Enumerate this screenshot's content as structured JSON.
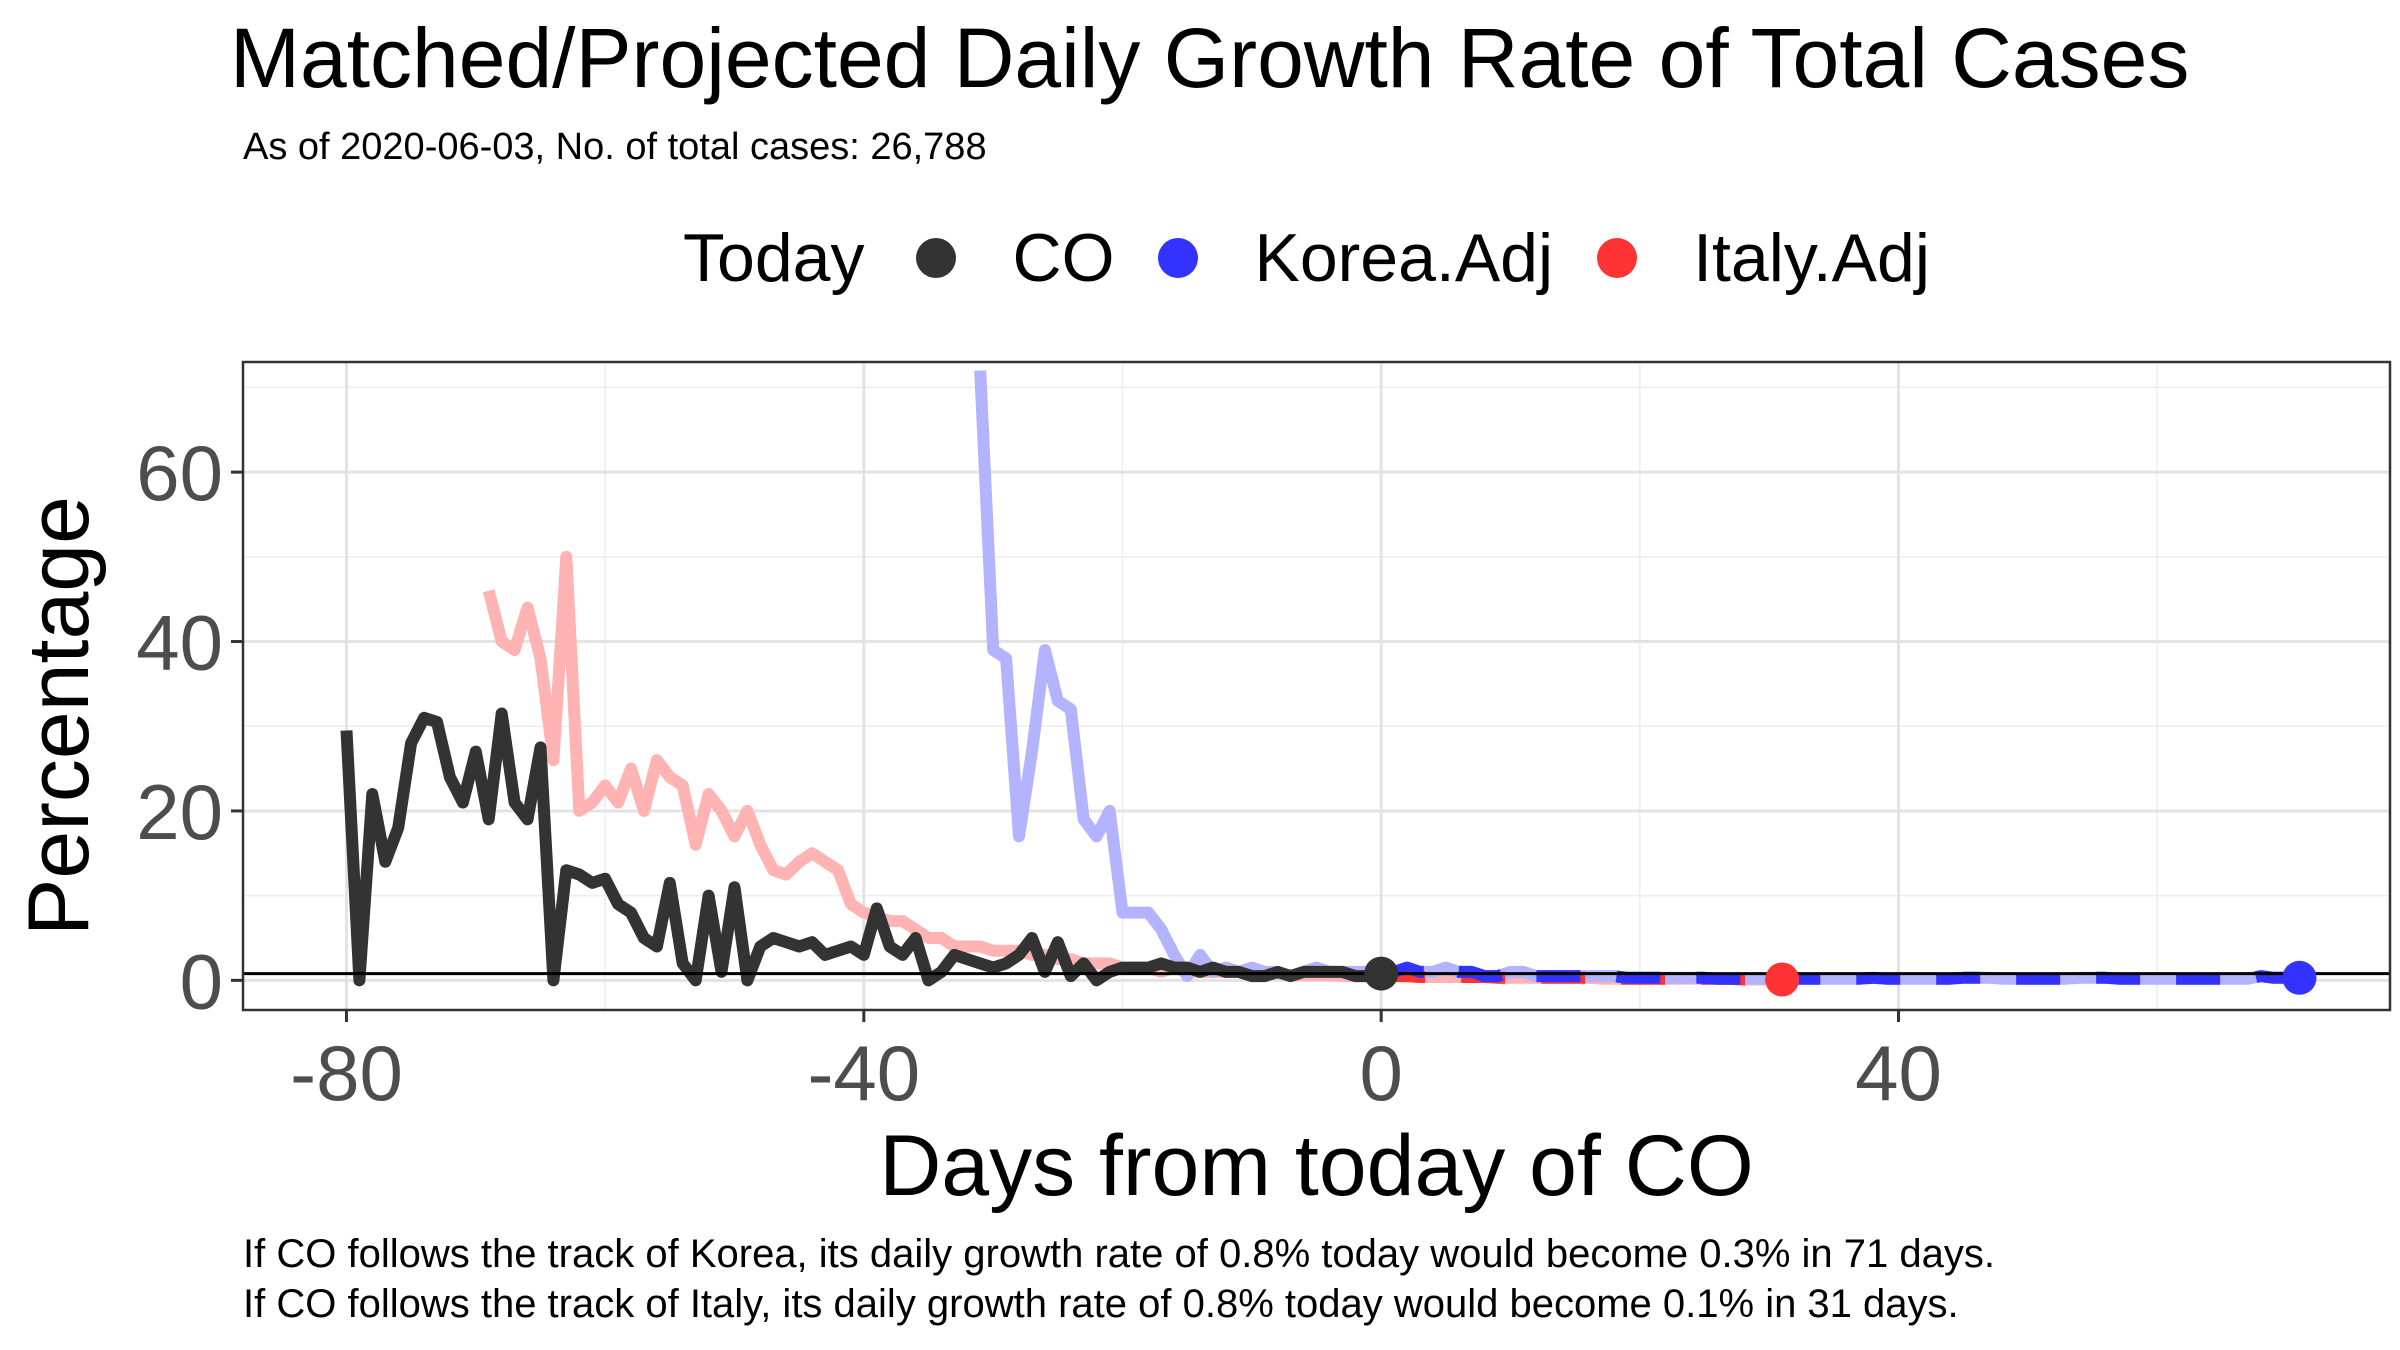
{
  "header": {
    "title": "Matched/Projected Daily Growth Rate of Total Cases",
    "subtitle": "As of 2020-06-03, No. of total cases: 26,788"
  },
  "legend": {
    "title": "Today",
    "items": [
      {
        "label": "CO",
        "color": "#333333"
      },
      {
        "label": "Korea.Adj",
        "color": "#3333ff"
      },
      {
        "label": "Italy.Adj",
        "color": "#ff3333"
      }
    ]
  },
  "captions": [
    "If CO follows the track of Korea, its daily growth rate of 0.8% today would become 0.3% in 71 days.",
    "If CO follows the track of Italy, its daily growth rate of 0.8% today would become 0.1% in 31 days."
  ],
  "chart_data": {
    "type": "line",
    "title": "Matched/Projected Daily Growth Rate of Total Cases",
    "subtitle": "As of 2020-06-03, No. of total cases: 26,788",
    "xlabel": "Days from today of CO",
    "ylabel": "Percentage",
    "xlim": [
      -88,
      78
    ],
    "ylim": [
      -3.5,
      73
    ],
    "xticks": [
      -80,
      -40,
      0,
      40
    ],
    "xtick_labels": [
      "-80",
      "-40",
      "0",
      "40"
    ],
    "yticks": [
      0,
      20,
      40,
      60
    ],
    "ytick_labels": [
      "0",
      "20",
      "40",
      "60"
    ],
    "grid": true,
    "legend_position": "top",
    "reference_line": 0.8,
    "series": [
      {
        "name": "CO",
        "color": "#333333",
        "faded_color": "#333333",
        "x": [
          -80,
          -79,
          -78,
          -77,
          -76,
          -75,
          -74,
          -73,
          -72,
          -71,
          -70,
          -69,
          -68,
          -67,
          -66,
          -65,
          -64,
          -63,
          -62,
          -61,
          -60,
          -59,
          -58,
          -57,
          -56,
          -55,
          -54,
          -53,
          -52,
          -51,
          -50,
          -49,
          -48,
          -47,
          -46,
          -45,
          -44,
          -43,
          -42,
          -41,
          -40,
          -39,
          -38,
          -37,
          -36,
          -35,
          -34,
          -33,
          -32,
          -31,
          -30,
          -29,
          -28,
          -27,
          -26,
          -25,
          -24,
          -23,
          -22,
          -21,
          -20,
          -19,
          -18,
          -17,
          -16,
          -15,
          -14,
          -13,
          -12,
          -11,
          -10,
          -9,
          -8,
          -7,
          -6,
          -5,
          -4,
          -3,
          -2,
          -1,
          0
        ],
        "y": [
          29.5,
          0,
          22,
          14,
          18,
          28,
          31,
          30.5,
          24,
          21,
          27,
          19,
          31.5,
          21,
          19,
          27.5,
          0,
          13,
          12.5,
          11.5,
          12,
          9,
          8,
          5,
          4,
          11.5,
          2,
          0,
          10,
          1,
          11,
          0,
          4,
          5,
          4.5,
          4,
          4.5,
          3,
          3.5,
          4,
          3,
          8.5,
          4,
          3,
          5,
          0,
          1,
          3,
          2.5,
          2,
          1.5,
          2,
          3,
          5,
          1,
          4.5,
          0.5,
          2,
          0,
          1,
          1.5,
          1.5,
          1.5,
          2,
          1.5,
          1.5,
          1,
          1.5,
          1,
          1,
          0.5,
          0.5,
          1,
          0.5,
          1,
          1,
          1,
          1,
          0.5,
          0.5,
          0.8
        ],
        "today": {
          "x": 0,
          "y": 0.8
        }
      },
      {
        "name": "Korea.Adj",
        "color": "#3333ff",
        "faded_color": "#b3b3ff",
        "x": [
          -31,
          -30,
          -29,
          -28,
          -27,
          -26,
          -25,
          -24,
          -23,
          -22,
          -21,
          -20,
          -19,
          -18,
          -17,
          -16,
          -15,
          -14,
          -13,
          -12,
          -11,
          -10,
          -9,
          -8,
          -7,
          -6,
          -5,
          -4,
          -3,
          -2,
          -1,
          0,
          1,
          2,
          3,
          4,
          5,
          6,
          7,
          8,
          9,
          10,
          11,
          12,
          13,
          14,
          15,
          16,
          17,
          18,
          19,
          20,
          21,
          22,
          23,
          24,
          25,
          26,
          27,
          28,
          29,
          30,
          31,
          32,
          33,
          34,
          35,
          36,
          37,
          38,
          39,
          40,
          41,
          42,
          43,
          44,
          45,
          46,
          47,
          48,
          49,
          50,
          51,
          52,
          53,
          54,
          55,
          56,
          57,
          58,
          59,
          60,
          61,
          62,
          63,
          64,
          65,
          66,
          67,
          68,
          69,
          70,
          71
        ],
        "y": [
          72,
          39,
          38,
          17,
          27,
          39,
          33,
          32,
          19,
          17,
          20,
          8,
          8,
          8,
          6,
          3,
          0.5,
          3,
          1,
          1.5,
          1,
          1.5,
          1,
          1,
          0.5,
          1,
          1.5,
          1,
          1,
          1,
          1,
          1,
          1,
          1.5,
          1,
          1,
          1.5,
          1,
          1,
          0.5,
          0.5,
          1,
          1,
          0.5,
          0.5,
          0.5,
          0.5,
          0.5,
          0.5,
          0.5,
          0.3,
          0.3,
          0.3,
          0.3,
          0.3,
          0.3,
          0.3,
          0.2,
          0.2,
          0.2,
          0.2,
          0.2,
          0.2,
          0.2,
          0.2,
          0.2,
          0.2,
          0.2,
          0.2,
          0.3,
          0.2,
          0.2,
          0.2,
          0.2,
          0.2,
          0.2,
          0.3,
          0.3,
          0.3,
          0.2,
          0.2,
          0.2,
          0.2,
          0.2,
          0.2,
          0.3,
          0.3,
          0.3,
          0.2,
          0.2,
          0.2,
          0.2,
          0.2,
          0.2,
          0.2,
          0.2,
          0.2,
          0.2,
          0.2,
          0.5,
          0.3,
          0.3,
          0.3
        ],
        "solid_from": 0,
        "today": {
          "x": 71,
          "y": 0.3
        }
      },
      {
        "name": "Italy.Adj",
        "color": "#ff3333",
        "faded_color": "#ffb3b3",
        "x": [
          -69,
          -68,
          -67,
          -66,
          -65,
          -64,
          -63,
          -62,
          -61,
          -60,
          -59,
          -58,
          -57,
          -56,
          -55,
          -54,
          -53,
          -52,
          -51,
          -50,
          -49,
          -48,
          -47,
          -46,
          -45,
          -44,
          -43,
          -42,
          -41,
          -40,
          -39,
          -38,
          -37,
          -36,
          -35,
          -34,
          -33,
          -32,
          -31,
          -30,
          -29,
          -28,
          -27,
          -26,
          -25,
          -24,
          -23,
          -22,
          -21,
          -20,
          -19,
          -18,
          -17,
          -16,
          -15,
          -14,
          -13,
          -12,
          -11,
          -10,
          -9,
          -8,
          -7,
          -6,
          -5,
          -4,
          -3,
          -2,
          -1,
          0,
          1,
          2,
          3,
          4,
          5,
          6,
          7,
          8,
          9,
          10,
          11,
          12,
          13,
          14,
          15,
          16,
          17,
          18,
          19,
          20,
          21,
          22,
          23,
          24,
          25,
          26,
          27,
          28,
          29,
          30,
          31
        ],
        "y": [
          46,
          40,
          39,
          44,
          38,
          26,
          50,
          20,
          21,
          23,
          21,
          25,
          20,
          26,
          24,
          23,
          16,
          22,
          20,
          17,
          20,
          16,
          13,
          12.5,
          14,
          15,
          14,
          13,
          9,
          8,
          7.5,
          7,
          7,
          6,
          5,
          5,
          4,
          4,
          4,
          3.5,
          3.5,
          3.5,
          3,
          3,
          2.5,
          2.5,
          2,
          2,
          2,
          1.5,
          1.5,
          1.5,
          1,
          1.5,
          1,
          1,
          1,
          1,
          1,
          0.8,
          0.8,
          0.8,
          0.6,
          0.6,
          0.6,
          0.6,
          0.5,
          0.5,
          0.5,
          0.5,
          0.5,
          0.5,
          0.4,
          0.4,
          0.4,
          0.4,
          0.4,
          0.4,
          0.3,
          0.3,
          0.3,
          0.3,
          0.3,
          0.3,
          0.3,
          0.3,
          0.2,
          0.2,
          0.2,
          0.2,
          0.2,
          0.2,
          0.2,
          0.2,
          0.2,
          0.2,
          0.2,
          0.1,
          0.1,
          0.1,
          0.1
        ],
        "solid_from": 0,
        "today": {
          "x": 31,
          "y": 0.1
        }
      }
    ]
  }
}
